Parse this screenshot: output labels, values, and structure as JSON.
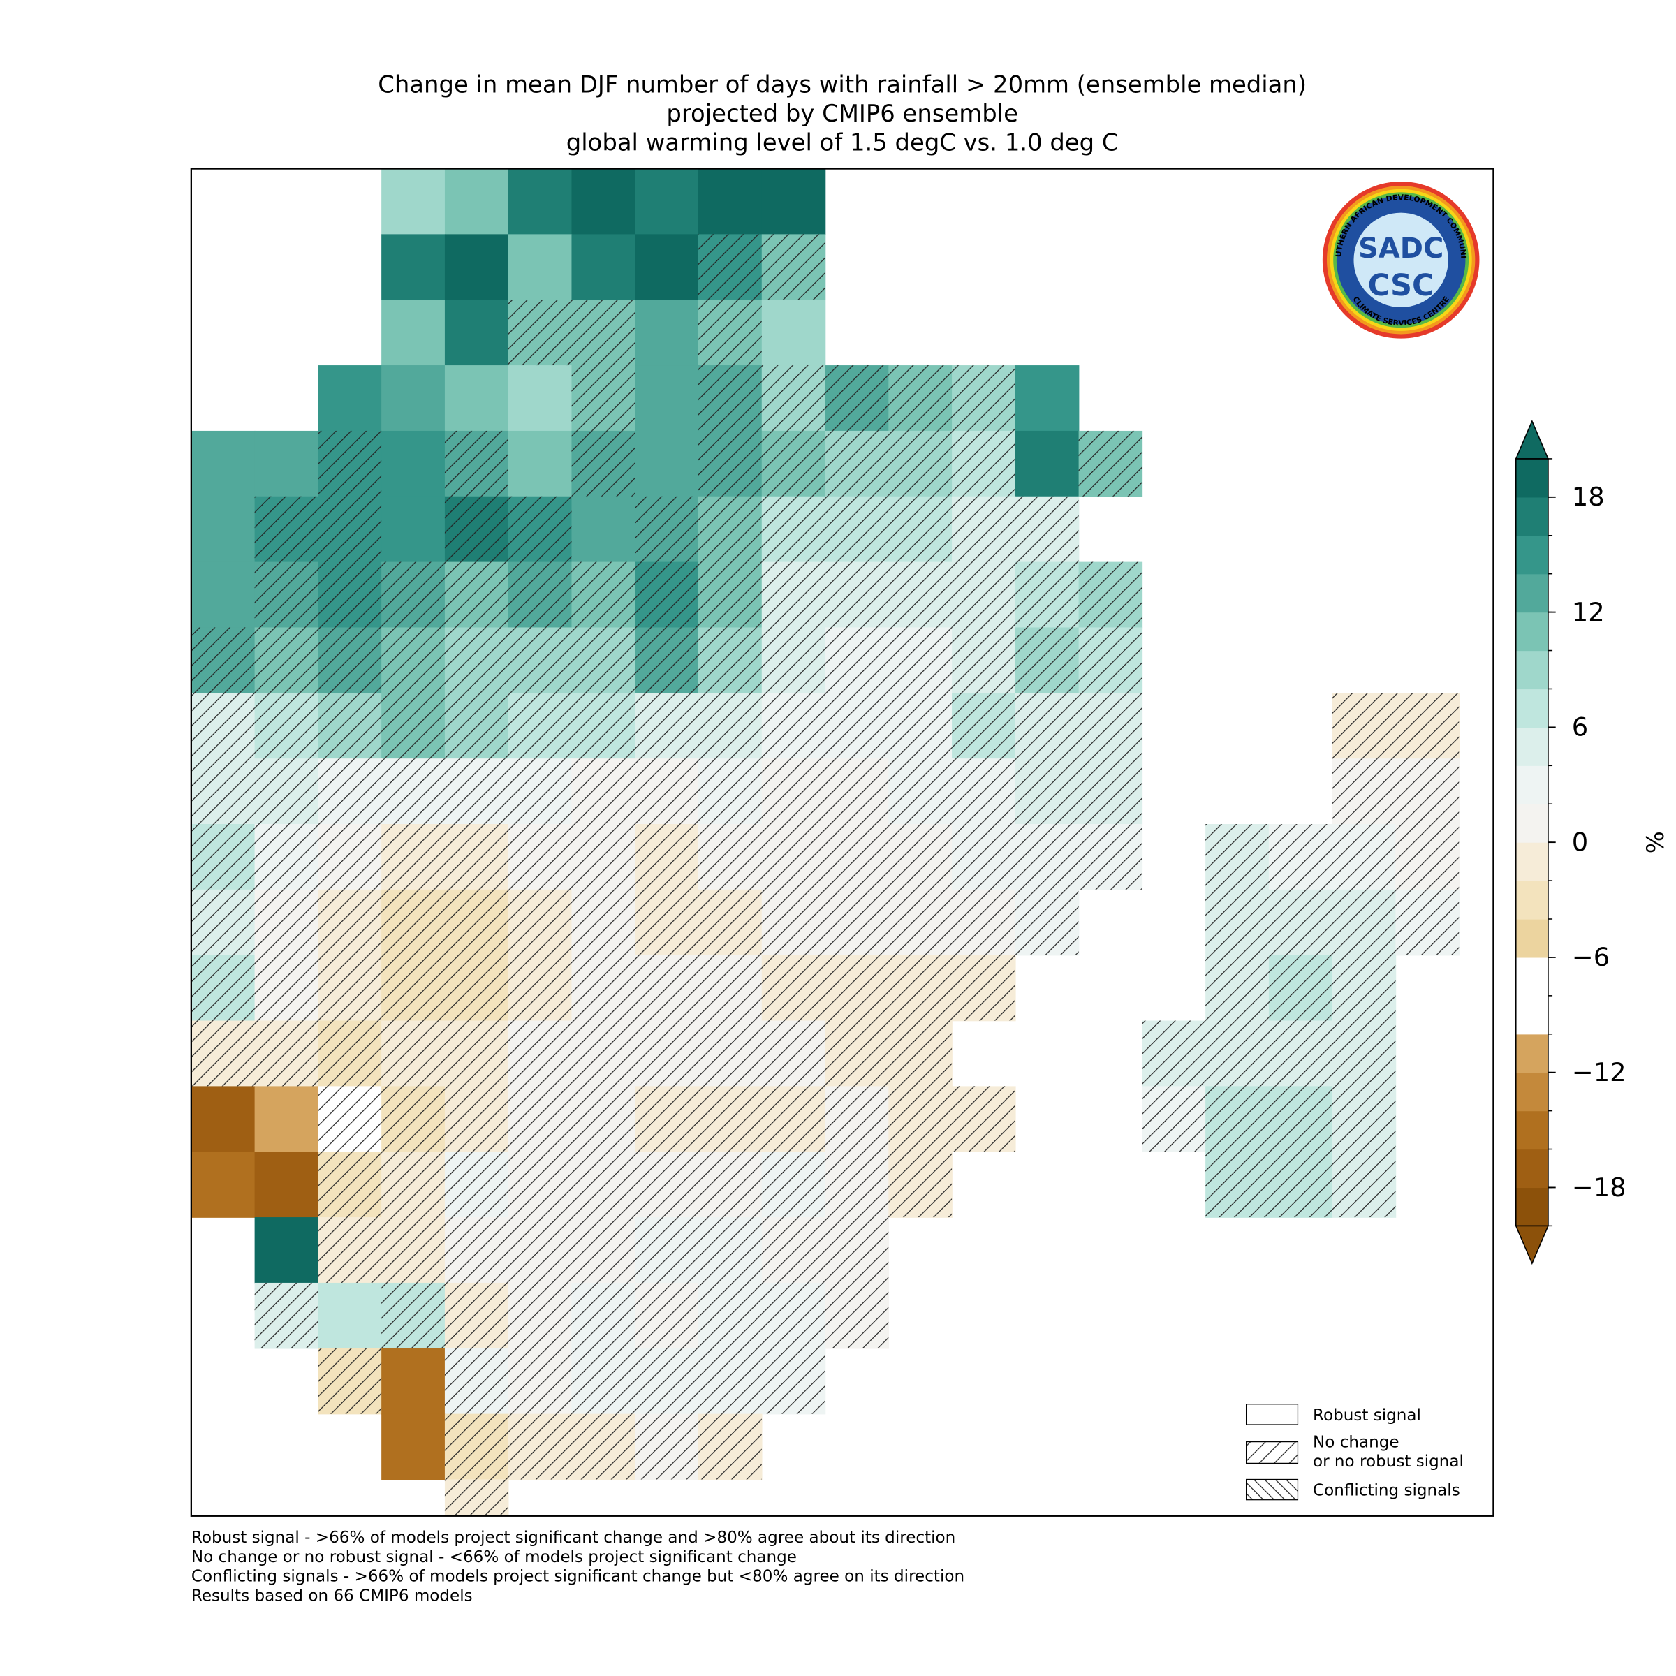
{
  "title_lines": [
    "Change in mean DJF number of days with rainfall > 20mm (ensemble median)",
    "projected by CMIP6 ensemble",
    "global warming level of 1.5 degC vs. 1.0 deg C"
  ],
  "map": {
    "values": [
      [
        null,
        null,
        null,
        8,
        10,
        16,
        18,
        16,
        18,
        18,
        null,
        null,
        null,
        null,
        null,
        null,
        null,
        null,
        null,
        null
      ],
      [
        null,
        null,
        null,
        16,
        18,
        10,
        16,
        18,
        14,
        10,
        null,
        null,
        null,
        null,
        null,
        null,
        null,
        null,
        null,
        null
      ],
      [
        null,
        null,
        null,
        10,
        16,
        10,
        10,
        12,
        10,
        8,
        null,
        null,
        null,
        null,
        null,
        null,
        null,
        null,
        null,
        null
      ],
      [
        null,
        null,
        14,
        12,
        10,
        8,
        10,
        12,
        12,
        8,
        12,
        10,
        8,
        14,
        null,
        null,
        null,
        null,
        null,
        null
      ],
      [
        12,
        12,
        14,
        14,
        12,
        10,
        12,
        12,
        12,
        10,
        8,
        8,
        6,
        16,
        10,
        null,
        null,
        null,
        null,
        null
      ],
      [
        12,
        14,
        14,
        14,
        16,
        14,
        12,
        12,
        10,
        6,
        6,
        6,
        4,
        4,
        null,
        null,
        null,
        null,
        null,
        null
      ],
      [
        12,
        12,
        14,
        12,
        10,
        12,
        10,
        14,
        10,
        4,
        4,
        4,
        4,
        6,
        8,
        null,
        null,
        null,
        null,
        null
      ],
      [
        12,
        10,
        12,
        10,
        8,
        8,
        8,
        12,
        8,
        4,
        2,
        2,
        4,
        8,
        6,
        null,
        null,
        null,
        null,
        null
      ],
      [
        4,
        6,
        8,
        10,
        8,
        6,
        6,
        4,
        4,
        2,
        2,
        2,
        6,
        4,
        4,
        null,
        null,
        null,
        -2,
        -2
      ],
      [
        4,
        4,
        2,
        2,
        2,
        2,
        0,
        0,
        2,
        0,
        0,
        2,
        2,
        4,
        4,
        null,
        null,
        null,
        0,
        0
      ],
      [
        6,
        2,
        0,
        -2,
        -2,
        0,
        0,
        -2,
        0,
        0,
        0,
        0,
        2,
        2,
        2,
        null,
        4,
        2,
        2,
        0
      ],
      [
        4,
        0,
        -2,
        -4,
        -4,
        -2,
        0,
        -2,
        -2,
        0,
        0,
        0,
        0,
        2,
        null,
        null,
        4,
        4,
        4,
        2
      ],
      [
        6,
        0,
        -2,
        -4,
        -4,
        -2,
        0,
        0,
        0,
        -2,
        -2,
        -2,
        -2,
        null,
        null,
        null,
        4,
        6,
        4,
        null
      ],
      [
        -2,
        -2,
        -4,
        -2,
        -2,
        0,
        0,
        0,
        0,
        0,
        -2,
        -2,
        null,
        null,
        null,
        4,
        4,
        4,
        4,
        null
      ],
      [
        -18,
        -12,
        -10,
        -4,
        -2,
        0,
        0,
        -2,
        -2,
        -2,
        0,
        -2,
        -2,
        null,
        null,
        2,
        6,
        6,
        4,
        null
      ],
      [
        -16,
        -18,
        -4,
        -2,
        2,
        0,
        0,
        0,
        0,
        2,
        0,
        -2,
        null,
        null,
        null,
        null,
        6,
        6,
        4,
        null
      ],
      [
        null,
        18,
        -2,
        -2,
        0,
        0,
        0,
        2,
        2,
        0,
        0,
        null,
        null,
        null,
        null,
        null,
        null,
        null,
        null,
        null
      ],
      [
        null,
        4,
        6,
        6,
        -2,
        0,
        2,
        0,
        2,
        2,
        0,
        null,
        null,
        null,
        null,
        null,
        null,
        null,
        null,
        null
      ],
      [
        null,
        null,
        -4,
        -16,
        2,
        0,
        2,
        2,
        2,
        2,
        null,
        null,
        null,
        null,
        null,
        null,
        null,
        null,
        null,
        null
      ],
      [
        null,
        null,
        null,
        -16,
        -4,
        -2,
        -2,
        0,
        -2,
        null,
        null,
        null,
        null,
        null,
        null,
        null,
        null,
        null,
        null,
        null
      ],
      [
        null,
        null,
        null,
        null,
        -2,
        null,
        null,
        null,
        null,
        null,
        null,
        null,
        null,
        null,
        null,
        null,
        null,
        null,
        null,
        null
      ]
    ],
    "hatched": [
      [
        null,
        null,
        null,
        0,
        0,
        0,
        0,
        0,
        0,
        0,
        null,
        null,
        null,
        null,
        null,
        null,
        null,
        null,
        null,
        null
      ],
      [
        null,
        null,
        null,
        0,
        0,
        0,
        0,
        0,
        1,
        1,
        null,
        null,
        null,
        null,
        null,
        null,
        null,
        null,
        null,
        null
      ],
      [
        null,
        null,
        null,
        0,
        0,
        1,
        1,
        0,
        1,
        0,
        null,
        null,
        null,
        null,
        null,
        null,
        null,
        null,
        null,
        null
      ],
      [
        null,
        null,
        0,
        0,
        0,
        0,
        1,
        0,
        1,
        1,
        1,
        1,
        1,
        0,
        null,
        null,
        null,
        null,
        null,
        null
      ],
      [
        0,
        0,
        1,
        0,
        1,
        0,
        1,
        0,
        1,
        1,
        1,
        1,
        1,
        0,
        1,
        null,
        null,
        null,
        null,
        null
      ],
      [
        0,
        1,
        1,
        0,
        1,
        1,
        0,
        1,
        1,
        1,
        1,
        1,
        1,
        1,
        null,
        null,
        null,
        null,
        null,
        null
      ],
      [
        0,
        1,
        1,
        1,
        1,
        1,
        1,
        1,
        1,
        1,
        1,
        1,
        1,
        1,
        1,
        null,
        null,
        null,
        null,
        null
      ],
      [
        1,
        1,
        1,
        1,
        1,
        1,
        1,
        1,
        1,
        1,
        1,
        1,
        1,
        1,
        1,
        null,
        null,
        null,
        null,
        null
      ],
      [
        1,
        1,
        1,
        1,
        1,
        1,
        1,
        1,
        1,
        1,
        1,
        1,
        1,
        1,
        1,
        null,
        null,
        null,
        1,
        1
      ],
      [
        1,
        1,
        1,
        1,
        1,
        1,
        1,
        1,
        1,
        1,
        1,
        1,
        1,
        1,
        1,
        null,
        null,
        null,
        1,
        1
      ],
      [
        1,
        1,
        1,
        1,
        1,
        1,
        1,
        1,
        1,
        1,
        1,
        1,
        1,
        1,
        1,
        null,
        1,
        1,
        1,
        1
      ],
      [
        1,
        1,
        1,
        1,
        1,
        1,
        1,
        1,
        1,
        1,
        1,
        1,
        1,
        1,
        null,
        null,
        1,
        1,
        1,
        1
      ],
      [
        1,
        1,
        1,
        1,
        1,
        1,
        1,
        1,
        1,
        1,
        1,
        1,
        1,
        null,
        null,
        null,
        1,
        1,
        1,
        null
      ],
      [
        1,
        1,
        1,
        1,
        1,
        1,
        1,
        1,
        1,
        1,
        1,
        1,
        null,
        null,
        null,
        1,
        1,
        1,
        1,
        null
      ],
      [
        0,
        0,
        1,
        1,
        1,
        1,
        1,
        1,
        1,
        1,
        1,
        1,
        1,
        null,
        null,
        1,
        1,
        1,
        1,
        null
      ],
      [
        0,
        0,
        1,
        1,
        1,
        1,
        1,
        1,
        1,
        1,
        1,
        1,
        null,
        null,
        null,
        null,
        1,
        1,
        1,
        null
      ],
      [
        null,
        0,
        1,
        1,
        1,
        1,
        1,
        1,
        1,
        1,
        1,
        null,
        null,
        null,
        null,
        null,
        null,
        null,
        null,
        null
      ],
      [
        null,
        1,
        0,
        1,
        1,
        1,
        1,
        1,
        1,
        1,
        1,
        null,
        null,
        null,
        null,
        null,
        null,
        null,
        null,
        null
      ],
      [
        null,
        null,
        1,
        0,
        1,
        1,
        1,
        1,
        1,
        1,
        null,
        null,
        null,
        null,
        null,
        null,
        null,
        null,
        null,
        null
      ],
      [
        null,
        null,
        null,
        0,
        1,
        1,
        1,
        1,
        1,
        null,
        null,
        null,
        null,
        null,
        null,
        null,
        null,
        null,
        null,
        null
      ],
      [
        null,
        null,
        null,
        null,
        1,
        null,
        null,
        null,
        null,
        null,
        null,
        null,
        null,
        null,
        null,
        null,
        null,
        null,
        null,
        null
      ]
    ]
  },
  "colorbar": {
    "levels": [
      -20,
      -18,
      -16,
      -14,
      -12,
      -10,
      -8,
      -6,
      -4,
      -2,
      0,
      2,
      4,
      6,
      8,
      10,
      12,
      14,
      16,
      18,
      20
    ],
    "colors": [
      "#8c510a",
      "#9f5f13",
      "#b0701f",
      "#c4893b",
      "#d5a45e",
      "#ffffff",
      "#ffffff",
      "#ecd49f",
      "#f3e3bd",
      "#f6ecd8",
      "#f4f3f0",
      "#eef4f3",
      "#dcefeb",
      "#bfe6de",
      "#9fd7cb",
      "#7bc4b4",
      "#52a99b",
      "#35968a",
      "#1f7f74",
      "#0f6a61"
    ],
    "ticks": [
      {
        "value": -18,
        "label": "−18"
      },
      {
        "value": -12,
        "label": "−12"
      },
      {
        "value": -6,
        "label": "−6"
      },
      0,
      6,
      12,
      18
    ],
    "label": "%"
  },
  "legend": [
    {
      "lines": [
        "Robust signal"
      ]
    },
    {
      "lines": [
        "No change",
        "or no robust signal"
      ]
    },
    {
      "lines": [
        "Conflicting signals"
      ]
    }
  ],
  "footnotes": [
    "Robust signal - >66% of models project significant change and >80% agree about its direction",
    "No change or no robust signal - <66% of models project significant change",
    "Conflicting signals - >66% of models project significant change but <80% agree on its direction",
    "Results based on 66 CMIP6 models"
  ],
  "logo": {
    "top": "SOUTHERN AFRICAN DEVELOPMENT COMMUNITY",
    "bottom": "CLIMATE SERVICES CENTRE",
    "line1": "SADC",
    "line2": "CSC"
  }
}
